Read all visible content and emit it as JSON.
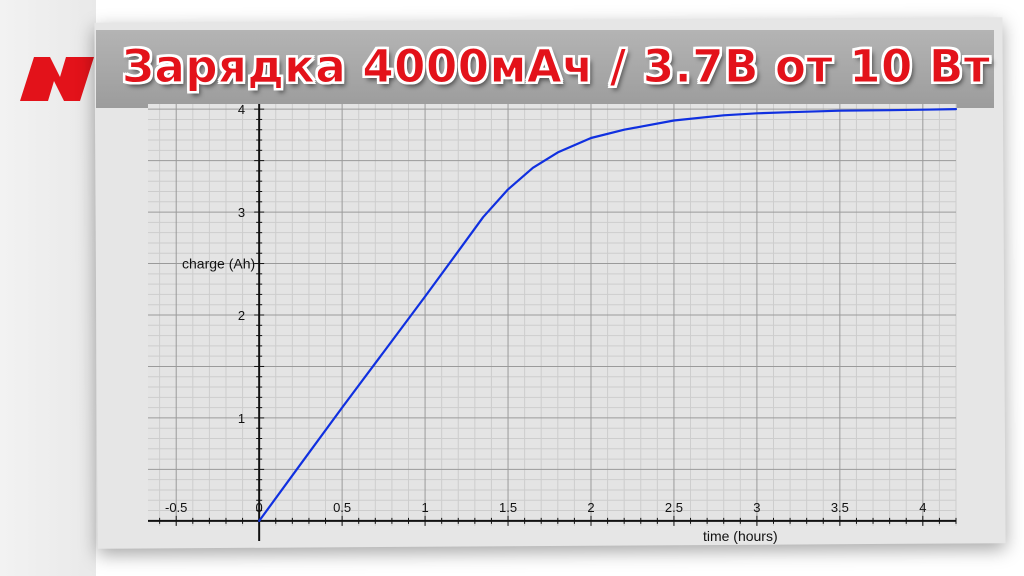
{
  "title": "Зарядка 4000мАч / 3.7В от 10 Вт",
  "logo_icon": "red-N-brand-logo",
  "colors": {
    "title": "#e3121a",
    "line": "#1030e0",
    "logo": "#e3121a",
    "grid_major": "#9a9a9a",
    "grid_minor": "#cdcdcd"
  },
  "chart_data": {
    "type": "line",
    "title": "",
    "xlabel": "time (hours)",
    "ylabel": "charge (Ah)",
    "xlim": [
      -0.67,
      4.2
    ],
    "ylim": [
      -0.05,
      4.05
    ],
    "x_ticks": [
      -0.5,
      0,
      0.5,
      1,
      1.5,
      2,
      2.5,
      3,
      3.5,
      4
    ],
    "x_tick_labels": [
      "-0.5",
      "0",
      "0.5",
      "1",
      "1.5",
      "2",
      "2.5",
      "3",
      "3.5",
      "4"
    ],
    "y_ticks": [
      1,
      2,
      3,
      4
    ],
    "y_tick_labels": [
      "1",
      "2",
      "3",
      "4"
    ],
    "grid": true,
    "series": [
      {
        "x": [
          0,
          0.25,
          0.5,
          0.75,
          1.0,
          1.2,
          1.35,
          1.5,
          1.65,
          1.8,
          2.0,
          2.2,
          2.5,
          2.8,
          3.0,
          3.2,
          3.5,
          3.8,
          4.0,
          4.2
        ],
        "values": [
          0,
          0.55,
          1.1,
          1.64,
          2.18,
          2.62,
          2.95,
          3.22,
          3.43,
          3.58,
          3.72,
          3.8,
          3.89,
          3.94,
          3.96,
          3.97,
          3.985,
          3.99,
          3.995,
          4.0
        ]
      }
    ]
  }
}
